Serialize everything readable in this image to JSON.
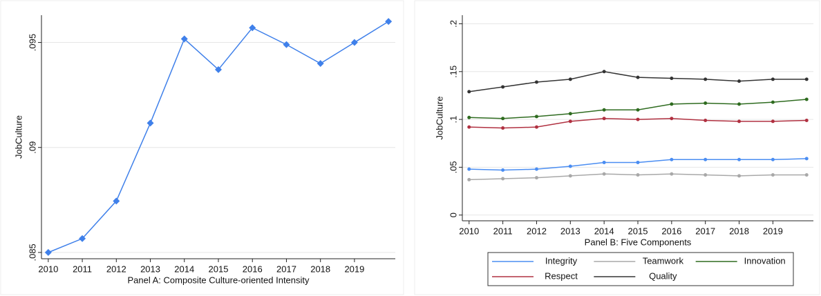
{
  "chart_data": [
    {
      "type": "line",
      "marker": "diamond",
      "ylabel": "JobCulture",
      "xlabel": "Panel A: Composite Culture-oriented Intensity",
      "x": [
        2010,
        2011,
        2012,
        2013,
        2014,
        2015,
        2016,
        2017,
        2018,
        2019,
        2020
      ],
      "values": [
        0.085,
        0.08566,
        0.08745,
        0.09116,
        0.09517,
        0.09371,
        0.0957,
        0.0949,
        0.094,
        0.095,
        0.096
      ],
      "color": "#3f80ea",
      "xlim": [
        2009.8,
        2020.2
      ],
      "xticks": [
        2010,
        2011,
        2012,
        2013,
        2014,
        2015,
        2016,
        2017,
        2018,
        2019
      ],
      "ylim": [
        0.0847,
        0.0963
      ],
      "yticks": [
        {
          "value": 0.085,
          "label": ".085"
        },
        {
          "value": 0.09,
          "label": ".09"
        },
        {
          "value": 0.095,
          "label": ".095"
        }
      ],
      "grid": true
    },
    {
      "type": "line",
      "marker": "circle",
      "ylabel": "JobCulture",
      "xlabel": "Panel B: Five Components",
      "x": [
        2010,
        2011,
        2012,
        2013,
        2014,
        2015,
        2016,
        2017,
        2018,
        2019,
        2020
      ],
      "series": [
        {
          "name": "Integrity",
          "color": "#4a8df2",
          "values": [
            0.048,
            0.047,
            0.048,
            0.051,
            0.055,
            0.055,
            0.058,
            0.058,
            0.058,
            0.058,
            0.059
          ]
        },
        {
          "name": "Teamwork",
          "color": "#a8a8a8",
          "values": [
            0.037,
            0.038,
            0.039,
            0.041,
            0.043,
            0.042,
            0.043,
            0.042,
            0.041,
            0.042,
            0.042
          ]
        },
        {
          "name": "Innovation",
          "color": "#2e6b1f",
          "values": [
            0.102,
            0.101,
            0.103,
            0.106,
            0.11,
            0.11,
            0.116,
            0.117,
            0.116,
            0.118,
            0.121
          ]
        },
        {
          "name": "Respect",
          "color": "#b03040",
          "values": [
            0.092,
            0.091,
            0.092,
            0.098,
            0.101,
            0.1,
            0.101,
            0.099,
            0.098,
            0.098,
            0.099
          ]
        },
        {
          "name": "Quality",
          "color": "#333333",
          "values": [
            0.129,
            0.134,
            0.139,
            0.142,
            0.15,
            0.144,
            0.143,
            0.142,
            0.14,
            0.142,
            0.142
          ]
        }
      ],
      "xlim": [
        2009.8,
        2020.2
      ],
      "xticks": [
        2010,
        2011,
        2012,
        2013,
        2014,
        2015,
        2016,
        2017,
        2018,
        2019
      ],
      "ylim": [
        -0.006,
        0.209
      ],
      "yticks": [
        0,
        {
          "value": 0.05,
          "label": ".05"
        },
        {
          "value": 0.1,
          "label": ".1"
        },
        {
          "value": 0.15,
          "label": ".15"
        },
        {
          "value": 0.2,
          "label": ".2"
        }
      ],
      "grid": true
    }
  ]
}
